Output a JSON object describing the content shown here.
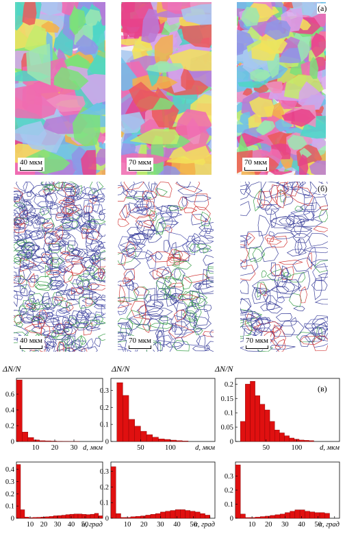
{
  "figure": {
    "panel_labels": {
      "a": "(а)",
      "b": "(б)",
      "c": "(в)"
    },
    "scale_bars": {
      "top": [
        "40 мкм",
        "70 мкм",
        "70 мкм"
      ],
      "middle": [
        "40 мкм",
        "70 мкм",
        "70 мкм"
      ]
    },
    "y_label": "ΔN/N"
  },
  "chart_data": [
    {
      "type": "bar",
      "title": "",
      "xlabel": "d, мкм",
      "ylabel": "ΔN/N",
      "xlim": [
        0,
        45
      ],
      "ylim": [
        0,
        0.8
      ],
      "xticks": [
        10,
        20,
        30
      ],
      "yticks": [
        0,
        0.2,
        0.4,
        0.6
      ],
      "bin_width": 3,
      "x": [
        1.5,
        4.5,
        7.5,
        10.5,
        13.5,
        16.5,
        19.5,
        22.5,
        25.5,
        28.5,
        31.5
      ],
      "values": [
        0.78,
        0.12,
        0.05,
        0.02,
        0.01,
        0.008,
        0.005,
        0.003,
        0.002,
        0.001,
        0.001
      ],
      "color": "#e01010"
    },
    {
      "type": "bar",
      "title": "",
      "xlabel": "d, мкм",
      "ylabel": "ΔN/N",
      "xlim": [
        0,
        175
      ],
      "ylim": [
        0,
        0.37
      ],
      "xticks": [
        50,
        100
      ],
      "yticks": [
        0,
        0.1,
        0.2,
        0.3
      ],
      "bin_width": 10,
      "x": [
        15,
        25,
        35,
        45,
        55,
        65,
        75,
        85,
        95,
        105,
        115,
        125
      ],
      "values": [
        0.345,
        0.27,
        0.13,
        0.09,
        0.06,
        0.04,
        0.025,
        0.015,
        0.012,
        0.008,
        0.005,
        0.003
      ],
      "color": "#e01010"
    },
    {
      "type": "bar",
      "title": "",
      "xlabel": "d, мкм",
      "ylabel": "ΔN/N",
      "xlim": [
        0,
        170
      ],
      "ylim": [
        0,
        0.22
      ],
      "xticks": [
        50,
        100
      ],
      "yticks": [
        0,
        0.05,
        0.1,
        0.15,
        0.2
      ],
      "bin_width": 8,
      "x": [
        12,
        20,
        28,
        36,
        44,
        52,
        60,
        68,
        76,
        84,
        92,
        100,
        108,
        116,
        124
      ],
      "values": [
        0.07,
        0.2,
        0.21,
        0.16,
        0.13,
        0.11,
        0.07,
        0.04,
        0.03,
        0.02,
        0.012,
        0.008,
        0.005,
        0.004,
        0.003
      ],
      "color": "#e01010"
    },
    {
      "type": "bar",
      "title": "",
      "xlabel": "α, град",
      "ylabel": "ΔN/N",
      "xlim": [
        0,
        63
      ],
      "ylim": [
        0,
        0.46
      ],
      "xticks": [
        10,
        20,
        30,
        40,
        50,
        60
      ],
      "yticks": [
        0,
        0.1,
        0.2,
        0.3,
        0.4
      ],
      "bin_width": 3,
      "x": [
        1.5,
        4.5,
        7.5,
        10.5,
        13.5,
        16.5,
        19.5,
        22.5,
        25.5,
        28.5,
        31.5,
        34.5,
        37.5,
        40.5,
        43.5,
        46.5,
        49.5,
        52.5,
        55.5,
        58.5,
        61.5
      ],
      "values": [
        0.44,
        0.07,
        0.01,
        0.005,
        0.007,
        0.008,
        0.01,
        0.012,
        0.015,
        0.02,
        0.022,
        0.025,
        0.03,
        0.033,
        0.035,
        0.035,
        0.032,
        0.03,
        0.033,
        0.04,
        0.02
      ],
      "color": "#e01010"
    },
    {
      "type": "bar",
      "title": "",
      "xlabel": "α, град",
      "ylabel": "ΔN/N",
      "xlim": [
        0,
        63
      ],
      "ylim": [
        0,
        0.36
      ],
      "xticks": [
        10,
        20,
        30,
        40,
        50,
        60
      ],
      "yticks": [
        0,
        0.1,
        0.2,
        0.3
      ],
      "bin_width": 3,
      "x": [
        1.5,
        4.5,
        7.5,
        10.5,
        13.5,
        16.5,
        19.5,
        22.5,
        25.5,
        28.5,
        31.5,
        34.5,
        37.5,
        40.5,
        43.5,
        46.5,
        49.5,
        52.5,
        55.5,
        58.5
      ],
      "values": [
        0.33,
        0.03,
        0.005,
        0.005,
        0.01,
        0.012,
        0.015,
        0.02,
        0.025,
        0.03,
        0.04,
        0.045,
        0.05,
        0.055,
        0.055,
        0.05,
        0.045,
        0.04,
        0.03,
        0.02
      ],
      "color": "#e01010"
    },
    {
      "type": "bar",
      "title": "",
      "xlabel": "α, град",
      "ylabel": "ΔN/N",
      "xlim": [
        0,
        63
      ],
      "ylim": [
        0,
        0.4
      ],
      "xticks": [
        10,
        20,
        30,
        40,
        50,
        60
      ],
      "yticks": [
        0,
        0.1,
        0.2,
        0.3
      ],
      "bin_width": 3,
      "x": [
        1.5,
        4.5,
        7.5,
        10.5,
        13.5,
        16.5,
        19.5,
        22.5,
        25.5,
        28.5,
        31.5,
        34.5,
        37.5,
        40.5,
        43.5,
        46.5,
        49.5,
        52.5,
        55.5
      ],
      "values": [
        0.38,
        0.03,
        0.005,
        0.005,
        0.008,
        0.012,
        0.015,
        0.02,
        0.025,
        0.03,
        0.04,
        0.05,
        0.06,
        0.06,
        0.05,
        0.045,
        0.04,
        0.04,
        0.035
      ],
      "color": "#e01010"
    }
  ]
}
